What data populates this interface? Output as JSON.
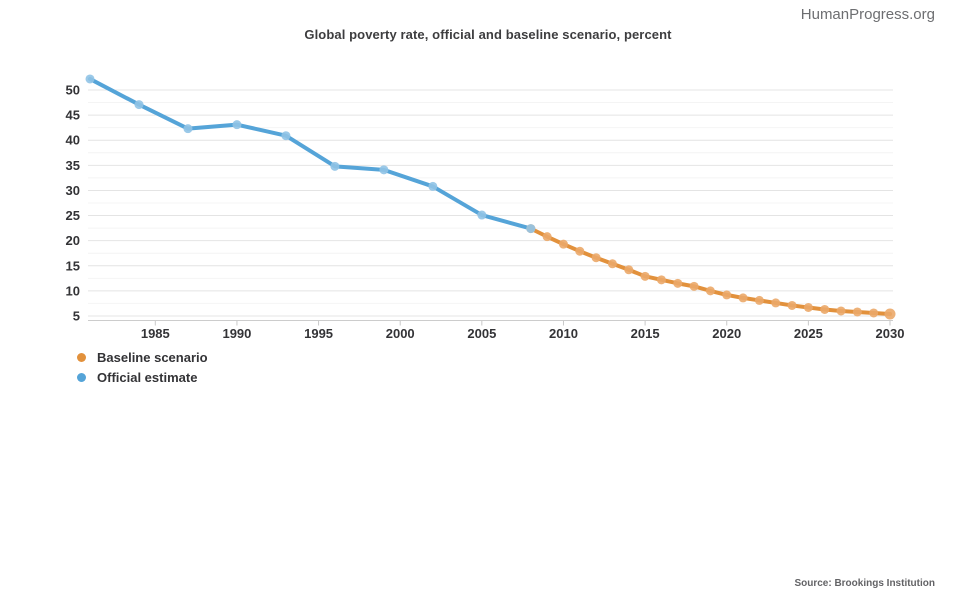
{
  "page": {
    "brand": "HumanProgress.org",
    "source": "Source: Brookings Institution"
  },
  "chart_data": {
    "type": "line",
    "title": "Global poverty rate, official and baseline scenario, percent",
    "xlabel": "",
    "ylabel": "",
    "xlim": [
      1980.9,
      2030.2
    ],
    "ylim": [
      4.2,
      52.6
    ],
    "x_ticks": [
      1985,
      1990,
      1995,
      2000,
      2005,
      2010,
      2015,
      2020,
      2025,
      2030
    ],
    "y_ticks": [
      5,
      10,
      15,
      20,
      25,
      30,
      35,
      40,
      45,
      50
    ],
    "y_minor_step": 2.5,
    "grid": "horizontal major and minor, no vertical gridlines",
    "legend_position": "bottom-left",
    "colors": {
      "major_grid": "#e4e4e4",
      "minor_grid": "#f4f4f4",
      "axis_line": "#cccccc",
      "tick": "#c9c9c9",
      "axis_label": "#333336"
    },
    "series": [
      {
        "name": "Baseline scenario",
        "color": "#e2913c",
        "marker_color": "#eba869",
        "x": [
          2008,
          2009,
          2010,
          2011,
          2012,
          2013,
          2014,
          2015,
          2016,
          2017,
          2018,
          2019,
          2020,
          2021,
          2022,
          2023,
          2024,
          2025,
          2026,
          2027,
          2028,
          2029,
          2030
        ],
        "values": [
          22.4,
          20.8,
          19.3,
          17.9,
          16.6,
          15.4,
          14.2,
          12.9,
          12.2,
          11.5,
          10.9,
          10.0,
          9.2,
          8.6,
          8.1,
          7.6,
          7.1,
          6.7,
          6.3,
          6.0,
          5.8,
          5.6,
          5.4
        ]
      },
      {
        "name": "Official estimate",
        "color": "#55a4d8",
        "marker_color": "#90c3e6",
        "x": [
          1981,
          1984,
          1987,
          1990,
          1993,
          1996,
          1999,
          2002,
          2005,
          2008
        ],
        "values": [
          52.2,
          47.1,
          42.3,
          43.1,
          40.9,
          34.8,
          34.1,
          30.8,
          25.1,
          22.4
        ]
      }
    ]
  }
}
